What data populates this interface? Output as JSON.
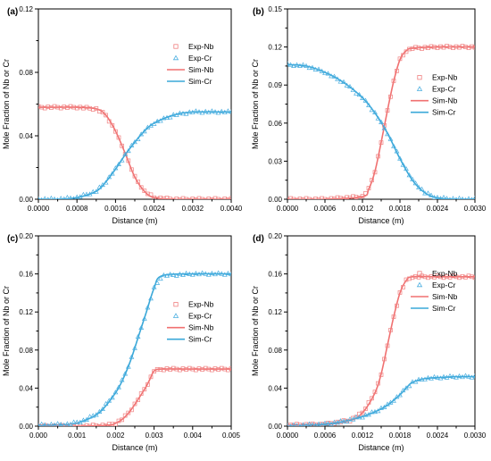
{
  "chart_data": [
    {
      "type": "line",
      "panel_label": "(a)",
      "xlabel": "Distance (m)",
      "ylabel": "Mole Fraction of Nb or Cr",
      "xlim": [
        0,
        0.004
      ],
      "ylim": [
        0,
        0.12
      ],
      "xticks": [
        0,
        0.0008,
        0.0016,
        0.0024,
        0.0032,
        0.004
      ],
      "xtick_labels": [
        "0.0000",
        "0.0008",
        "0.0016",
        "0.0024",
        "0.0032",
        "0.0040"
      ],
      "yticks": [
        0,
        0.04,
        0.08,
        0.12
      ],
      "ytick_labels": [
        "0.00",
        "0.04",
        "0.08",
        "0.12"
      ],
      "legend_position": "upper-right",
      "series": [
        {
          "name": "Exp-Nb",
          "kind": "marker",
          "marker": "square",
          "color": "#f08080",
          "x": [
            0,
            0.0004,
            0.0008,
            0.0012,
            0.0014,
            0.0016,
            0.0018,
            0.002,
            0.0022,
            0.0024,
            0.0028,
            0.0032,
            0.004
          ],
          "y": [
            0.058,
            0.058,
            0.058,
            0.057,
            0.053,
            0.043,
            0.029,
            0.014,
            0.005,
            0.001,
            0.0,
            0.0,
            0.0
          ]
        },
        {
          "name": "Exp-Cr",
          "kind": "marker",
          "marker": "triangle",
          "color": "#4aaee0",
          "x": [
            0,
            0.0004,
            0.0008,
            0.0012,
            0.0014,
            0.0016,
            0.0018,
            0.002,
            0.0022,
            0.0024,
            0.0028,
            0.0032,
            0.004
          ],
          "y": [
            0.0,
            0.0,
            0.001,
            0.005,
            0.011,
            0.019,
            0.028,
            0.036,
            0.043,
            0.048,
            0.053,
            0.055,
            0.055
          ]
        },
        {
          "name": "Sim-Nb",
          "kind": "line",
          "color": "#f07070",
          "x": [
            0,
            0.0004,
            0.0008,
            0.0012,
            0.0014,
            0.0016,
            0.0018,
            0.002,
            0.0022,
            0.0024,
            0.0028,
            0.0032,
            0.004
          ],
          "y": [
            0.058,
            0.058,
            0.058,
            0.057,
            0.053,
            0.043,
            0.029,
            0.014,
            0.005,
            0.001,
            0.0,
            0.0,
            0.0
          ]
        },
        {
          "name": "Sim-Cr",
          "kind": "line",
          "color": "#3aa8d8",
          "x": [
            0,
            0.0004,
            0.0008,
            0.0012,
            0.0014,
            0.0016,
            0.0018,
            0.002,
            0.0022,
            0.0024,
            0.0028,
            0.0032,
            0.004
          ],
          "y": [
            0.0,
            0.0,
            0.001,
            0.005,
            0.011,
            0.019,
            0.028,
            0.036,
            0.043,
            0.048,
            0.053,
            0.055,
            0.055
          ]
        }
      ]
    },
    {
      "type": "line",
      "panel_label": "(b)",
      "xlabel": "Distance (m)",
      "ylabel": "Mole Fraction of Nb or Cr",
      "xlim": [
        0,
        0.003
      ],
      "ylim": [
        0,
        0.15
      ],
      "xticks": [
        0,
        0.0006,
        0.0012,
        0.0018,
        0.0024,
        0.003
      ],
      "xtick_labels": [
        "0.0000",
        "0.0006",
        "0.0012",
        "0.0018",
        "0.0024",
        "0.0030"
      ],
      "yticks": [
        0,
        0.03,
        0.06,
        0.09,
        0.12,
        0.15
      ],
      "ytick_labels": [
        "0.00",
        "0.03",
        "0.06",
        "0.09",
        "0.12",
        "0.15"
      ],
      "legend_position": "center-right",
      "series": [
        {
          "name": "Exp-Nb",
          "kind": "marker",
          "marker": "square",
          "color": "#f08080",
          "x": [
            0,
            0.0006,
            0.0012,
            0.0013,
            0.0014,
            0.0015,
            0.0016,
            0.0017,
            0.0018,
            0.0019,
            0.002,
            0.0024,
            0.003
          ],
          "y": [
            0.0,
            0.0,
            0.002,
            0.008,
            0.022,
            0.045,
            0.07,
            0.093,
            0.11,
            0.117,
            0.119,
            0.12,
            0.12
          ]
        },
        {
          "name": "Exp-Cr",
          "kind": "marker",
          "marker": "triangle",
          "color": "#4aaee0",
          "x": [
            0,
            0.0003,
            0.0006,
            0.0009,
            0.0012,
            0.0014,
            0.0016,
            0.0018,
            0.002,
            0.0022,
            0.0024,
            0.0027,
            0.003
          ],
          "y": [
            0.106,
            0.105,
            0.1,
            0.092,
            0.08,
            0.068,
            0.052,
            0.032,
            0.015,
            0.005,
            0.001,
            0.0,
            0.0
          ]
        },
        {
          "name": "Sim-Nb",
          "kind": "line",
          "color": "#f07070",
          "x": [
            0,
            0.0006,
            0.0012,
            0.0013,
            0.0014,
            0.0015,
            0.0016,
            0.0017,
            0.0018,
            0.0019,
            0.002,
            0.0024,
            0.003
          ],
          "y": [
            0.0,
            0.0,
            0.002,
            0.008,
            0.022,
            0.045,
            0.07,
            0.093,
            0.11,
            0.117,
            0.119,
            0.12,
            0.12
          ]
        },
        {
          "name": "Sim-Cr",
          "kind": "line",
          "color": "#3aa8d8",
          "x": [
            0,
            0.0003,
            0.0006,
            0.0009,
            0.0012,
            0.0014,
            0.0016,
            0.0018,
            0.002,
            0.0022,
            0.0024,
            0.0027,
            0.003
          ],
          "y": [
            0.106,
            0.105,
            0.1,
            0.092,
            0.08,
            0.068,
            0.052,
            0.032,
            0.015,
            0.005,
            0.001,
            0.0,
            0.0
          ]
        }
      ]
    },
    {
      "type": "line",
      "panel_label": "(c)",
      "xlabel": "Distance (m)",
      "ylabel": "Mole Fraction of Nb or Cr",
      "xlim": [
        0,
        0.005
      ],
      "ylim": [
        0,
        0.2
      ],
      "xticks": [
        0,
        0.001,
        0.002,
        0.003,
        0.004,
        0.005
      ],
      "xtick_labels": [
        "0.000",
        "0.001",
        "0.002",
        "0.003",
        "0.004",
        "0.005"
      ],
      "yticks": [
        0,
        0.04,
        0.08,
        0.12,
        0.16,
        0.2
      ],
      "ytick_labels": [
        "0.00",
        "0.04",
        "0.08",
        "0.12",
        "0.16",
        "0.20"
      ],
      "legend_position": "center-right",
      "series": [
        {
          "name": "Exp-Nb",
          "kind": "marker",
          "marker": "square",
          "color": "#f08080",
          "x": [
            0,
            0.001,
            0.0018,
            0.002,
            0.0022,
            0.0024,
            0.0026,
            0.0028,
            0.0029,
            0.003,
            0.0032,
            0.004,
            0.005
          ],
          "y": [
            0.0,
            0.0,
            0.001,
            0.003,
            0.008,
            0.017,
            0.029,
            0.042,
            0.05,
            0.058,
            0.06,
            0.06,
            0.06
          ]
        },
        {
          "name": "Exp-Cr",
          "kind": "marker",
          "marker": "triangle",
          "color": "#4aaee0",
          "x": [
            0,
            0.0008,
            0.0012,
            0.0016,
            0.002,
            0.0022,
            0.0024,
            0.0026,
            0.0028,
            0.003,
            0.0032,
            0.004,
            0.005
          ],
          "y": [
            0.001,
            0.002,
            0.006,
            0.015,
            0.035,
            0.05,
            0.07,
            0.095,
            0.12,
            0.145,
            0.158,
            0.16,
            0.16
          ]
        },
        {
          "name": "Sim-Nb",
          "kind": "line",
          "color": "#f07070",
          "x": [
            0,
            0.001,
            0.0018,
            0.002,
            0.0022,
            0.0024,
            0.0026,
            0.0028,
            0.0029,
            0.003,
            0.0032,
            0.004,
            0.005
          ],
          "y": [
            0.0,
            0.0,
            0.001,
            0.003,
            0.008,
            0.017,
            0.029,
            0.042,
            0.05,
            0.058,
            0.06,
            0.06,
            0.06
          ]
        },
        {
          "name": "Sim-Cr",
          "kind": "line",
          "color": "#3aa8d8",
          "x": [
            0,
            0.0008,
            0.0012,
            0.0016,
            0.002,
            0.0022,
            0.0024,
            0.0026,
            0.0028,
            0.003,
            0.0032,
            0.004,
            0.005
          ],
          "y": [
            0.001,
            0.002,
            0.006,
            0.015,
            0.035,
            0.05,
            0.07,
            0.095,
            0.12,
            0.145,
            0.158,
            0.16,
            0.16
          ]
        }
      ]
    },
    {
      "type": "line",
      "panel_label": "(d)",
      "xlabel": "Distance (m)",
      "ylabel": "Mole Fraction of Nb or Cr",
      "xlim": [
        0,
        0.003
      ],
      "ylim": [
        0,
        0.2
      ],
      "xticks": [
        0,
        0.0006,
        0.0012,
        0.0018,
        0.0024,
        0.003
      ],
      "xtick_labels": [
        "0.0000",
        "0.0006",
        "0.0012",
        "0.0018",
        "0.0024",
        "0.0030"
      ],
      "yticks": [
        0,
        0.04,
        0.08,
        0.12,
        0.16,
        0.2
      ],
      "ytick_labels": [
        "0.00",
        "0.04",
        "0.08",
        "0.12",
        "0.16",
        "0.20"
      ],
      "legend_position": "upper-right",
      "series": [
        {
          "name": "Exp-Nb",
          "kind": "marker",
          "marker": "square",
          "color": "#f08080",
          "x": [
            0,
            0.0006,
            0.001,
            0.0012,
            0.0014,
            0.0015,
            0.0016,
            0.0017,
            0.0018,
            0.0019,
            0.002,
            0.0024,
            0.003
          ],
          "y": [
            0.001,
            0.002,
            0.006,
            0.014,
            0.035,
            0.055,
            0.085,
            0.115,
            0.14,
            0.153,
            0.157,
            0.157,
            0.157
          ]
        },
        {
          "name": "Exp-Cr",
          "kind": "marker",
          "marker": "triangle",
          "color": "#4aaee0",
          "x": [
            0,
            0.0006,
            0.0009,
            0.0012,
            0.0014,
            0.0016,
            0.0018,
            0.0019,
            0.002,
            0.0022,
            0.0024,
            0.0027,
            0.003
          ],
          "y": [
            0.0,
            0.002,
            0.005,
            0.01,
            0.015,
            0.022,
            0.033,
            0.04,
            0.046,
            0.05,
            0.051,
            0.052,
            0.052
          ]
        },
        {
          "name": "Sim-Nb",
          "kind": "line",
          "color": "#f07070",
          "x": [
            0,
            0.0006,
            0.001,
            0.0012,
            0.0014,
            0.0015,
            0.0016,
            0.0017,
            0.0018,
            0.0019,
            0.002,
            0.0024,
            0.003
          ],
          "y": [
            0.001,
            0.002,
            0.006,
            0.014,
            0.035,
            0.055,
            0.085,
            0.115,
            0.14,
            0.153,
            0.157,
            0.157,
            0.157
          ]
        },
        {
          "name": "Sim-Cr",
          "kind": "line",
          "color": "#3aa8d8",
          "x": [
            0,
            0.0006,
            0.0009,
            0.0012,
            0.0014,
            0.0016,
            0.0018,
            0.0019,
            0.002,
            0.0022,
            0.0024,
            0.0027,
            0.003
          ],
          "y": [
            0.0,
            0.002,
            0.005,
            0.01,
            0.015,
            0.022,
            0.033,
            0.04,
            0.046,
            0.05,
            0.051,
            0.052,
            0.052
          ]
        }
      ]
    }
  ]
}
